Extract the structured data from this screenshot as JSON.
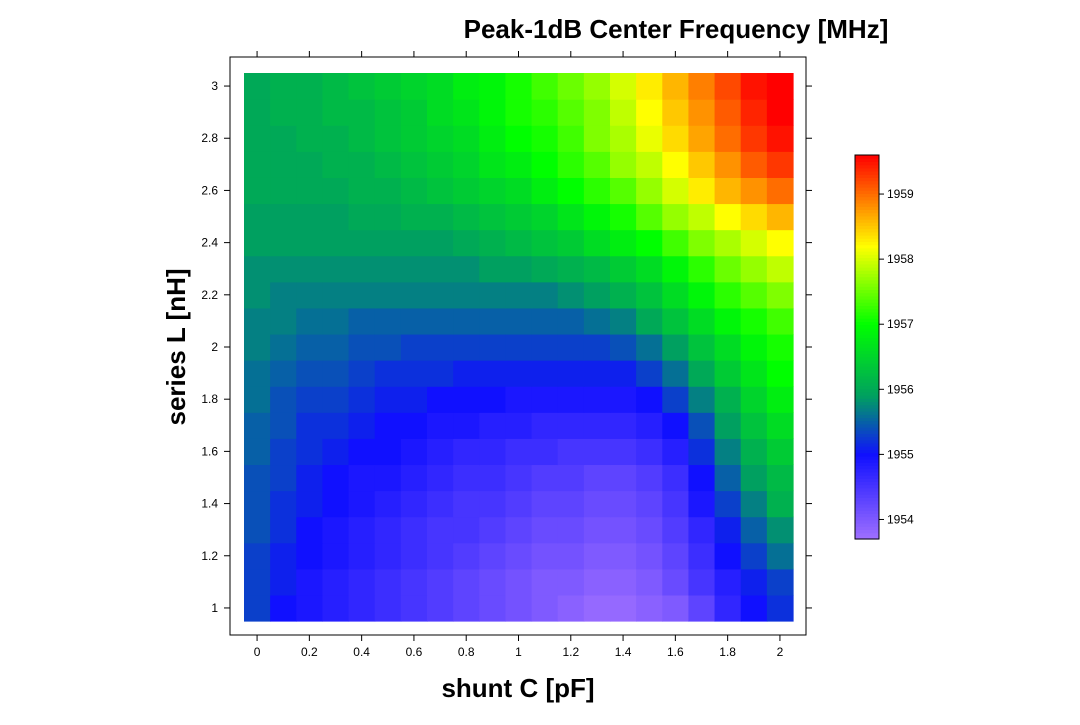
{
  "chart_data": {
    "type": "heatmap",
    "title": "Peak-1dB Center Frequency [MHz]",
    "xlabel": "shunt C [pF]",
    "ylabel": "series L [nH]",
    "xlim": [
      -0.05,
      2.05
    ],
    "ylim": [
      0.95,
      3.05
    ],
    "x_ticks": [
      "0",
      "0.2",
      "0.4",
      "0.6",
      "0.8",
      "1",
      "1.2",
      "1.4",
      "1.6",
      "1.8",
      "2"
    ],
    "y_ticks": [
      "1",
      "1.2",
      "1.4",
      "1.6",
      "1.8",
      "2",
      "2.2",
      "2.4",
      "2.6",
      "2.8",
      "3"
    ],
    "x": [
      0,
      0.1,
      0.2,
      0.3,
      0.4,
      0.5,
      0.6,
      0.7,
      0.8,
      0.9,
      1.0,
      1.1,
      1.2,
      1.3,
      1.4,
      1.5,
      1.6,
      1.7,
      1.8,
      1.9,
      2.0
    ],
    "y": [
      1.0,
      1.1,
      1.2,
      1.3,
      1.4,
      1.5,
      1.6,
      1.7,
      1.8,
      1.9,
      2.0,
      2.1,
      2.2,
      2.3,
      2.4,
      2.5,
      2.6,
      2.7,
      2.8,
      2.9,
      3.0
    ],
    "z_model": {
      "description": "cell values estimated from colors (MHz)",
      "rows_low_to_high_L": [
        [
          1955.3,
          1955.0,
          1954.9,
          1954.8,
          1954.7,
          1954.6,
          1954.5,
          1954.4,
          1954.3,
          1954.2,
          1954.1,
          1954.0,
          1953.9,
          1953.8,
          1953.8,
          1953.9,
          1954.0,
          1954.3,
          1954.7,
          1955.0,
          1955.2
        ],
        [
          1955.3,
          1955.1,
          1954.9,
          1954.8,
          1954.7,
          1954.6,
          1954.5,
          1954.4,
          1954.3,
          1954.2,
          1954.1,
          1954.0,
          1954.0,
          1953.9,
          1953.9,
          1954.0,
          1954.2,
          1954.5,
          1954.8,
          1955.1,
          1955.3
        ],
        [
          1955.3,
          1955.1,
          1955.0,
          1954.9,
          1954.8,
          1954.7,
          1954.6,
          1954.5,
          1954.4,
          1954.3,
          1954.2,
          1954.1,
          1954.1,
          1954.0,
          1954.0,
          1954.1,
          1954.3,
          1954.6,
          1955.0,
          1955.3,
          1955.6
        ],
        [
          1955.4,
          1955.2,
          1955.0,
          1954.9,
          1954.8,
          1954.7,
          1954.6,
          1954.5,
          1954.5,
          1954.4,
          1954.3,
          1954.2,
          1954.2,
          1954.1,
          1954.1,
          1954.2,
          1954.4,
          1954.7,
          1955.1,
          1955.5,
          1955.8
        ],
        [
          1955.4,
          1955.2,
          1955.1,
          1955.0,
          1954.9,
          1954.8,
          1954.7,
          1954.6,
          1954.5,
          1954.5,
          1954.4,
          1954.3,
          1954.3,
          1954.2,
          1954.2,
          1954.3,
          1954.5,
          1954.9,
          1955.3,
          1955.7,
          1956.1
        ],
        [
          1955.4,
          1955.3,
          1955.1,
          1955.0,
          1954.9,
          1954.9,
          1954.8,
          1954.7,
          1954.6,
          1954.6,
          1954.5,
          1954.4,
          1954.4,
          1954.3,
          1954.3,
          1954.4,
          1954.6,
          1955.0,
          1955.5,
          1955.9,
          1956.2
        ],
        [
          1955.5,
          1955.3,
          1955.2,
          1955.1,
          1955.0,
          1955.0,
          1954.9,
          1954.8,
          1954.7,
          1954.7,
          1954.6,
          1954.6,
          1954.5,
          1954.5,
          1954.5,
          1954.6,
          1954.8,
          1955.2,
          1955.7,
          1956.1,
          1956.4
        ],
        [
          1955.5,
          1955.4,
          1955.2,
          1955.2,
          1955.1,
          1955.0,
          1955.0,
          1954.9,
          1954.9,
          1954.8,
          1954.8,
          1954.7,
          1954.7,
          1954.7,
          1954.7,
          1954.8,
          1955.0,
          1955.4,
          1955.9,
          1956.3,
          1956.6
        ],
        [
          1955.6,
          1955.4,
          1955.3,
          1955.3,
          1955.2,
          1955.1,
          1955.1,
          1955.0,
          1955.0,
          1955.0,
          1954.9,
          1954.9,
          1954.9,
          1954.9,
          1954.9,
          1955.0,
          1955.3,
          1955.7,
          1956.1,
          1956.5,
          1956.8
        ],
        [
          1955.6,
          1955.5,
          1955.4,
          1955.4,
          1955.3,
          1955.2,
          1955.2,
          1955.2,
          1955.1,
          1955.1,
          1955.1,
          1955.1,
          1955.1,
          1955.1,
          1955.1,
          1955.3,
          1955.6,
          1956.0,
          1956.4,
          1956.7,
          1957.0
        ],
        [
          1955.7,
          1955.6,
          1955.5,
          1955.5,
          1955.4,
          1955.4,
          1955.3,
          1955.3,
          1955.3,
          1955.3,
          1955.3,
          1955.3,
          1955.3,
          1955.3,
          1955.4,
          1955.6,
          1955.9,
          1956.3,
          1956.6,
          1956.9,
          1957.1
        ],
        [
          1955.7,
          1955.7,
          1955.6,
          1955.6,
          1955.5,
          1955.5,
          1955.5,
          1955.5,
          1955.5,
          1955.5,
          1955.5,
          1955.5,
          1955.5,
          1955.6,
          1955.7,
          1956.0,
          1956.3,
          1956.6,
          1956.9,
          1957.1,
          1957.3
        ],
        [
          1955.8,
          1955.7,
          1955.7,
          1955.7,
          1955.7,
          1955.7,
          1955.7,
          1955.7,
          1955.7,
          1955.7,
          1955.7,
          1955.7,
          1955.8,
          1955.9,
          1956.1,
          1956.3,
          1956.6,
          1956.9,
          1957.2,
          1957.4,
          1957.6
        ],
        [
          1955.8,
          1955.8,
          1955.8,
          1955.8,
          1955.8,
          1955.8,
          1955.8,
          1955.8,
          1955.8,
          1955.9,
          1955.9,
          1956.0,
          1956.1,
          1956.2,
          1956.4,
          1956.6,
          1956.9,
          1957.2,
          1957.5,
          1957.7,
          1957.9
        ],
        [
          1955.9,
          1955.9,
          1955.9,
          1955.9,
          1955.9,
          1955.9,
          1955.9,
          1955.9,
          1956.0,
          1956.1,
          1956.2,
          1956.3,
          1956.4,
          1956.6,
          1956.8,
          1957.0,
          1957.3,
          1957.6,
          1957.8,
          1958.0,
          1958.2
        ],
        [
          1955.9,
          1955.9,
          1955.9,
          1955.9,
          1956.0,
          1956.0,
          1956.1,
          1956.1,
          1956.2,
          1956.3,
          1956.4,
          1956.5,
          1956.7,
          1956.9,
          1957.1,
          1957.4,
          1957.7,
          1957.9,
          1958.2,
          1958.4,
          1958.6
        ],
        [
          1956.0,
          1956.0,
          1956.0,
          1956.0,
          1956.1,
          1956.1,
          1956.2,
          1956.3,
          1956.4,
          1956.5,
          1956.6,
          1956.8,
          1957.0,
          1957.2,
          1957.4,
          1957.7,
          1958.0,
          1958.3,
          1958.6,
          1958.8,
          1959.0
        ],
        [
          1956.0,
          1956.0,
          1956.0,
          1956.1,
          1956.1,
          1956.2,
          1956.3,
          1956.4,
          1956.5,
          1956.7,
          1956.8,
          1957.0,
          1957.2,
          1957.4,
          1957.7,
          1957.9,
          1958.2,
          1958.5,
          1958.8,
          1959.1,
          1959.3
        ],
        [
          1956.0,
          1956.0,
          1956.1,
          1956.1,
          1956.2,
          1956.3,
          1956.4,
          1956.5,
          1956.6,
          1956.8,
          1957.0,
          1957.1,
          1957.3,
          1957.6,
          1957.8,
          1958.1,
          1958.4,
          1958.7,
          1959.0,
          1959.3,
          1959.5
        ],
        [
          1956.0,
          1956.1,
          1956.1,
          1956.2,
          1956.2,
          1956.3,
          1956.4,
          1956.6,
          1956.7,
          1956.9,
          1957.1,
          1957.2,
          1957.4,
          1957.6,
          1957.9,
          1958.2,
          1958.5,
          1958.8,
          1959.1,
          1959.4,
          1959.6
        ],
        [
          1956.0,
          1956.1,
          1956.1,
          1956.2,
          1956.3,
          1956.4,
          1956.5,
          1956.6,
          1956.8,
          1956.9,
          1957.1,
          1957.3,
          1957.5,
          1957.7,
          1958.0,
          1958.3,
          1958.6,
          1958.9,
          1959.2,
          1959.5,
          1959.7
        ]
      ]
    },
    "colorbar": {
      "min": 1953.7,
      "max": 1959.6,
      "ticks": [
        "1954",
        "1955",
        "1956",
        "1957",
        "1958",
        "1959"
      ],
      "tick_values": [
        1954,
        1955,
        1956,
        1957,
        1958,
        1959
      ],
      "colormap": [
        "#a070ff",
        "#1010ff",
        "#00a060",
        "#00ff00",
        "#ffff00",
        "#ff0000"
      ],
      "colormap_stops": [
        1953.7,
        1955.0,
        1955.9,
        1957.0,
        1958.2,
        1959.6
      ]
    },
    "grid": false,
    "legend": "right"
  }
}
